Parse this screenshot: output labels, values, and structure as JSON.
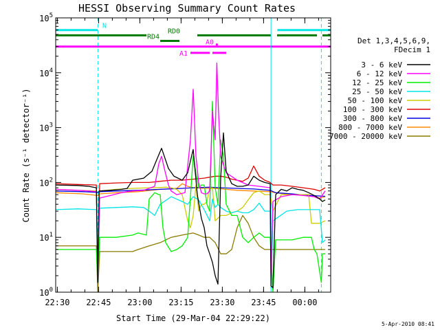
{
  "chart_data": {
    "type": "line",
    "title": "HESSI Observing Summary Count Rates",
    "xlabel": "Start Time (29-Mar-04 22:29:22)",
    "ylabel": "Count Rate (s⁻¹ detector⁻¹)",
    "footer": "5-Apr-2010 08:41",
    "x_unit": "minutes after 22:29:22",
    "xlim": [
      0,
      100
    ],
    "ylim": [
      1,
      100000
    ],
    "yscale": "log",
    "xticks": [
      {
        "t": 0.6,
        "label": "22:30"
      },
      {
        "t": 15.6,
        "label": "22:45"
      },
      {
        "t": 30.6,
        "label": "23:00"
      },
      {
        "t": 45.6,
        "label": "23:15"
      },
      {
        "t": 60.6,
        "label": "23:30"
      },
      {
        "t": 75.6,
        "label": "23:45"
      },
      {
        "t": 90.6,
        "label": "00:00"
      }
    ],
    "yticks": [
      {
        "v": 1,
        "base": "10",
        "exp": "0"
      },
      {
        "v": 10,
        "base": "10",
        "exp": "1"
      },
      {
        "v": 100,
        "base": "10",
        "exp": "2"
      },
      {
        "v": 1000,
        "base": "10",
        "exp": "3"
      },
      {
        "v": 10000,
        "base": "10",
        "exp": "4"
      },
      {
        "v": 100000,
        "base": "10",
        "exp": "5"
      }
    ],
    "legend": {
      "header": [
        "Det 1,3,4,5,6,9,",
        "FDecim 1"
      ],
      "placement": "right"
    },
    "flags": [
      {
        "name": "N",
        "color": "#00e5e5",
        "level": 60000,
        "segments": [
          [
            0,
            15.3
          ],
          [
            80.6,
            100
          ]
        ],
        "label_t": 17,
        "label_align": "start"
      },
      {
        "name": "RD0",
        "color": "#007a00",
        "level": 48000,
        "segments": [
          [
            0,
            33
          ],
          [
            51.5,
            78.3
          ],
          [
            80.5,
            95
          ],
          [
            97,
            100
          ]
        ],
        "label_t": 43,
        "label_align": "middle"
      },
      {
        "name": "RD4",
        "color": "#007a00",
        "level": 38000,
        "segments": [
          [
            38,
            45
          ]
        ],
        "label_t": 35.5,
        "label_align": "middle"
      },
      {
        "name": "A0",
        "color": "#ff00ff",
        "level": 30000,
        "segments": [
          [
            0,
            100
          ]
        ],
        "label_t": 56,
        "label_align": "middle"
      },
      {
        "name": "A1",
        "color": "#ff00ff",
        "level": 23000,
        "segments": [
          [
            49,
            56
          ],
          [
            57,
            62
          ]
        ],
        "label_t": 46.5,
        "label_align": "middle"
      }
    ],
    "a0_dots": [
      58.6
    ],
    "vlines": [
      {
        "t": 15.4,
        "color": "#00e5e5",
        "dashed": true
      },
      {
        "t": 78.3,
        "color": "#00e5e5",
        "dashed": false
      },
      {
        "t": 96.6,
        "color": "#00e5e5",
        "dashed": true
      }
    ],
    "series": [
      {
        "name": "3 - 6 keV",
        "color": "#000000",
        "x": [
          0,
          8,
          12,
          14.8,
          15.3,
          15.8,
          20,
          24,
          26,
          28,
          32,
          35,
          37.5,
          38.5,
          39.5,
          41,
          43,
          46,
          48,
          50,
          51.5,
          53,
          54,
          55,
          56,
          57,
          58,
          59,
          60,
          61,
          62,
          64,
          66,
          68,
          70,
          72,
          74,
          76,
          78,
          78.3,
          79,
          80,
          82,
          84,
          86,
          88,
          90,
          92,
          94,
          96,
          97,
          98
        ],
        "y": [
          90,
          88,
          85,
          80,
          1.5,
          70,
          72,
          75,
          78,
          110,
          120,
          160,
          320,
          420,
          300,
          180,
          130,
          110,
          150,
          400,
          60,
          22,
          15,
          7,
          5,
          3.5,
          2,
          1.4,
          120,
          800,
          160,
          95,
          85,
          85,
          90,
          130,
          110,
          100,
          95,
          1.3,
          1.2,
          60,
          75,
          70,
          80,
          75,
          72,
          65,
          58,
          50,
          45,
          48
        ]
      },
      {
        "name": "6 - 12 keV",
        "color": "#ff00ff",
        "x": [
          0,
          8,
          12,
          14.8,
          15.3,
          16,
          20,
          24,
          26,
          28,
          32,
          36,
          37.5,
          38.5,
          39.5,
          41,
          42,
          44,
          47,
          49,
          50,
          51,
          52,
          53,
          54,
          55,
          56,
          57,
          58,
          58.6,
          59.2,
          60,
          62,
          66,
          70,
          74,
          78,
          78.3,
          79,
          82,
          86,
          90,
          94,
          96,
          98
        ],
        "y": [
          75,
          72,
          70,
          68,
          2.5,
          52,
          58,
          65,
          68,
          70,
          72,
          85,
          220,
          300,
          180,
          90,
          70,
          60,
          65,
          600,
          5000,
          300,
          100,
          65,
          62,
          62,
          70,
          2000,
          600,
          15000,
          2000,
          300,
          150,
          110,
          90,
          85,
          80,
          2,
          45,
          55,
          60,
          58,
          55,
          50,
          70
        ]
      },
      {
        "name": "12 - 25 keV",
        "color": "#00ee00",
        "x": [
          0,
          10,
          14.8,
          15.3,
          16,
          22,
          28,
          30,
          33,
          34,
          36,
          37.5,
          38,
          39,
          40,
          42,
          44,
          46,
          48,
          50,
          51,
          52,
          53,
          54,
          55,
          56,
          57,
          58,
          59,
          60,
          61,
          62,
          64,
          66,
          68,
          70,
          72,
          74,
          76,
          78,
          79,
          80,
          82,
          86,
          90,
          93,
          94,
          95,
          96.6,
          97,
          98
        ],
        "y": [
          6,
          6,
          6,
          1.5,
          10,
          10,
          11,
          12,
          11,
          50,
          65,
          60,
          60,
          15,
          8,
          5.5,
          6,
          7,
          10,
          300,
          150,
          80,
          90,
          90,
          40,
          30,
          3000,
          80,
          40,
          600,
          300,
          40,
          25,
          25,
          10,
          8,
          10,
          12,
          10,
          10,
          1,
          9,
          9,
          9,
          10,
          10,
          6,
          5,
          1.5,
          5,
          5
        ]
      },
      {
        "name": "25 - 50 keV",
        "color": "#00e5e5",
        "x": [
          0,
          8,
          14.8,
          15.3,
          16,
          22,
          28,
          32,
          34,
          36,
          38,
          42,
          46,
          48,
          50,
          52,
          54,
          56,
          57,
          58,
          59,
          60,
          62,
          64,
          66,
          68,
          70,
          72,
          74,
          76,
          78,
          78.3,
          79,
          84,
          88,
          92,
          96,
          97,
          98
        ],
        "y": [
          32,
          33,
          32,
          2,
          34,
          35,
          36,
          35,
          30,
          25,
          40,
          55,
          45,
          40,
          55,
          48,
          32,
          20,
          50,
          35,
          40,
          35,
          30,
          28,
          30,
          28,
          28,
          32,
          42,
          30,
          30,
          1.2,
          20,
          30,
          32,
          32,
          32,
          8,
          9
        ]
      },
      {
        "name": "50 - 100 keV",
        "color": "#cccc00",
        "x": [
          0,
          8,
          14.8,
          15.3,
          16,
          22,
          28,
          34,
          36,
          40,
          42,
          44,
          46,
          48,
          49,
          50,
          51,
          52,
          53,
          54,
          55,
          56,
          57,
          58,
          60,
          62,
          64,
          66,
          68,
          70,
          72,
          74,
          76,
          78,
          79,
          82,
          86,
          90,
          92,
          93,
          96,
          98
        ],
        "y": [
          75,
          72,
          70,
          4,
          70,
          75,
          78,
          80,
          80,
          82,
          80,
          75,
          60,
          20,
          15,
          25,
          90,
          30,
          40,
          40,
          45,
          80,
          80,
          20,
          25,
          25,
          28,
          30,
          35,
          48,
          65,
          70,
          60,
          60,
          30,
          60,
          60,
          60,
          60,
          18,
          18,
          20
        ]
      },
      {
        "name": "100 - 300 keV",
        "color": "#dd0000",
        "x": [
          0,
          8,
          14.8,
          15.3,
          16,
          22,
          28,
          34,
          38,
          42,
          46,
          50,
          54,
          56,
          58,
          60,
          62,
          64,
          66,
          68,
          70,
          72,
          74,
          76,
          78,
          79,
          82,
          86,
          90,
          94,
          96,
          98
        ],
        "y": [
          95,
          92,
          90,
          2,
          95,
          98,
          100,
          100,
          105,
          110,
          110,
          115,
          120,
          125,
          130,
          130,
          125,
          115,
          110,
          105,
          120,
          200,
          130,
          110,
          100,
          90,
          90,
          85,
          80,
          75,
          70,
          80
        ]
      },
      {
        "name": "300 - 800 keV",
        "color": "#0000dd",
        "x": [
          0,
          10,
          15.3,
          16,
          22,
          30,
          38,
          46,
          50,
          56,
          60,
          66,
          72,
          78,
          80,
          86,
          92,
          98
        ],
        "y": [
          70,
          68,
          66,
          68,
          70,
          72,
          75,
          78,
          80,
          82,
          80,
          78,
          76,
          72,
          65,
          62,
          58,
          56
        ]
      },
      {
        "name": "800 - 7000 keV",
        "color": "#ff8800",
        "x": [
          0,
          10,
          15.3,
          16,
          22,
          30,
          38,
          44,
          46,
          48,
          50,
          54,
          58,
          62,
          66,
          72,
          78,
          80,
          86,
          92,
          94,
          96,
          98
        ],
        "y": [
          65,
          62,
          58,
          62,
          65,
          68,
          75,
          78,
          95,
          85,
          80,
          78,
          78,
          75,
          72,
          70,
          68,
          65,
          60,
          60,
          55,
          52,
          55
        ]
      },
      {
        "name": "7000 - 20000 keV",
        "color": "#8a7a00",
        "x": [
          0,
          10,
          14.8,
          15.3,
          16,
          22,
          26,
          28,
          30,
          34,
          38,
          42,
          46,
          50,
          52,
          54,
          56,
          58,
          60,
          62,
          64,
          66,
          68,
          70,
          72,
          74,
          76,
          78,
          80,
          84,
          88,
          92,
          96,
          98
        ],
        "y": [
          7,
          7,
          7,
          1,
          5.5,
          5.5,
          5.5,
          5.5,
          6,
          7,
          8,
          10,
          11,
          12,
          11,
          10,
          10,
          8,
          5,
          5,
          6,
          15,
          25,
          18,
          10,
          7,
          6,
          6,
          6,
          6,
          6,
          6,
          6,
          6
        ]
      }
    ]
  }
}
